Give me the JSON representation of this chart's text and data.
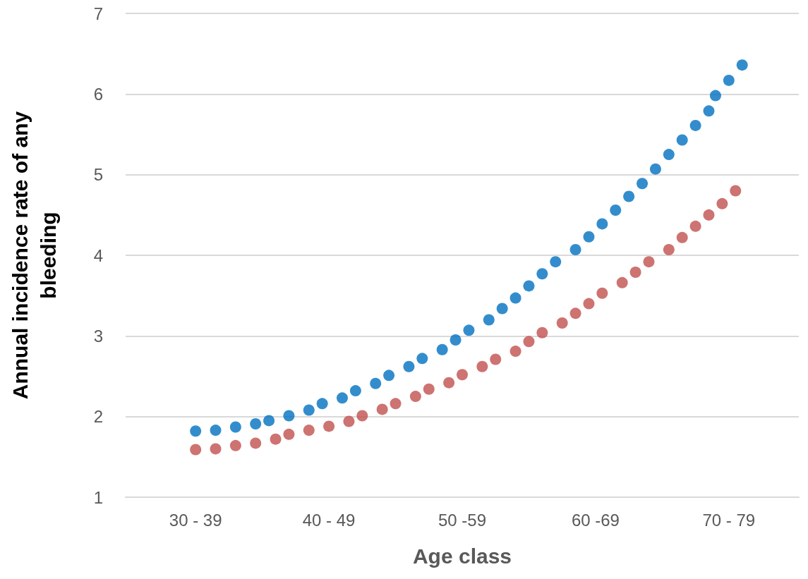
{
  "chart_data": {
    "type": "scatter",
    "xlabel": "Age class",
    "ylabel": "Annual incidence rate of any bleeding",
    "categories": [
      null,
      null,
      null,
      null,
      null,
      null,
      null,
      null,
      null,
      null,
      "30 - 39",
      null,
      null,
      null,
      null,
      null,
      null,
      null,
      null,
      null,
      null,
      null,
      null,
      null,
      null,
      null,
      null,
      null,
      null,
      null,
      "40 - 49",
      null,
      null,
      null,
      null,
      null,
      null,
      null,
      null,
      null,
      null,
      null,
      null,
      null,
      null,
      null,
      null,
      null,
      null,
      null,
      "50 -59",
      null,
      null,
      null,
      null,
      null,
      null,
      null,
      null,
      null,
      null,
      null,
      null,
      null,
      null,
      null,
      null,
      null,
      null,
      null,
      "60 -69",
      null,
      null,
      null,
      null,
      null,
      null,
      null,
      null,
      null,
      null,
      null,
      null,
      null,
      null,
      null,
      null,
      null,
      null,
      null,
      "70 - 79",
      null,
      null,
      null,
      null,
      null,
      null,
      null,
      null,
      null,
      null
    ],
    "ylim": [
      1,
      7
    ],
    "yticks": [
      1,
      2,
      3,
      4,
      5,
      6,
      7
    ],
    "grid": "y",
    "marker": "circle",
    "series": [
      {
        "color": "#0070c0",
        "values": [
          null,
          null,
          null,
          null,
          null,
          null,
          null,
          null,
          null,
          null,
          1.82,
          null,
          null,
          1.83,
          null,
          null,
          1.87,
          null,
          null,
          1.91,
          null,
          1.95,
          null,
          null,
          2.01,
          null,
          null,
          2.08,
          null,
          2.16,
          null,
          null,
          2.23,
          null,
          2.32,
          null,
          null,
          2.41,
          null,
          2.51,
          null,
          null,
          2.62,
          null,
          2.72,
          null,
          null,
          2.83,
          null,
          2.95,
          null,
          3.07,
          null,
          null,
          3.2,
          null,
          3.34,
          null,
          3.47,
          null,
          3.62,
          null,
          3.77,
          null,
          3.92,
          null,
          null,
          4.07,
          null,
          4.23,
          null,
          4.39,
          null,
          4.56,
          null,
          4.73,
          null,
          4.89,
          null,
          5.07,
          null,
          5.25,
          null,
          5.43,
          null,
          5.61,
          null,
          5.79,
          5.98,
          null,
          6.17,
          null,
          6.36,
          null,
          null,
          null,
          null,
          null,
          null,
          null,
          null
        ]
      },
      {
        "color": "#c0504d",
        "values": [
          null,
          null,
          null,
          null,
          null,
          null,
          null,
          null,
          null,
          null,
          1.59,
          null,
          null,
          1.6,
          null,
          null,
          1.64,
          null,
          null,
          1.67,
          null,
          null,
          1.72,
          null,
          1.78,
          null,
          null,
          1.83,
          null,
          null,
          1.88,
          null,
          null,
          1.94,
          null,
          2.01,
          null,
          null,
          2.09,
          null,
          2.16,
          null,
          null,
          2.25,
          null,
          2.34,
          null,
          null,
          2.42,
          null,
          2.52,
          null,
          null,
          2.62,
          null,
          2.71,
          null,
          null,
          2.81,
          null,
          2.93,
          null,
          3.04,
          null,
          null,
          3.16,
          null,
          3.28,
          null,
          3.4,
          null,
          3.53,
          null,
          null,
          3.66,
          null,
          3.79,
          null,
          3.92,
          null,
          null,
          4.07,
          null,
          4.22,
          null,
          4.36,
          null,
          4.5,
          null,
          4.64,
          null,
          4.8,
          null,
          null,
          null,
          null,
          null,
          null,
          null,
          null,
          null
        ]
      }
    ]
  }
}
